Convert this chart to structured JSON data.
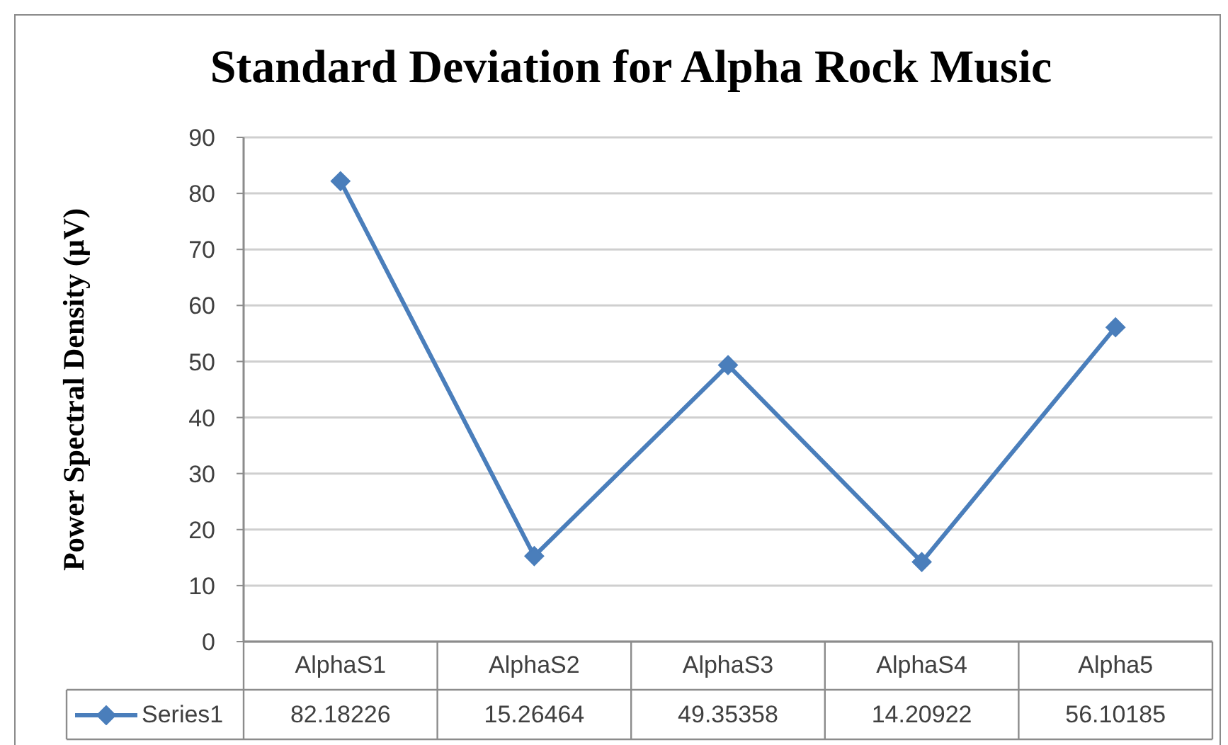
{
  "chart_data": {
    "type": "line",
    "title": "Standard Deviation for Alpha Rock Music",
    "ylabel": "Power Spectral Density (μV)",
    "categories": [
      "AlphaS1",
      "AlphaS2",
      "AlphaS3",
      "AlphaS4",
      "Alpha5"
    ],
    "series": [
      {
        "name": "Series1",
        "color": "#4a7ebb",
        "values": [
          82.18226,
          15.26464,
          49.35358,
          14.20922,
          56.10185
        ]
      }
    ],
    "ylim": [
      0,
      90
    ],
    "yticks": [
      0,
      10,
      20,
      30,
      40,
      50,
      60,
      70,
      80,
      90
    ],
    "grid": "y",
    "legend": "bottom",
    "marker": "diamond",
    "line_style": "solid",
    "data_labels": true
  }
}
